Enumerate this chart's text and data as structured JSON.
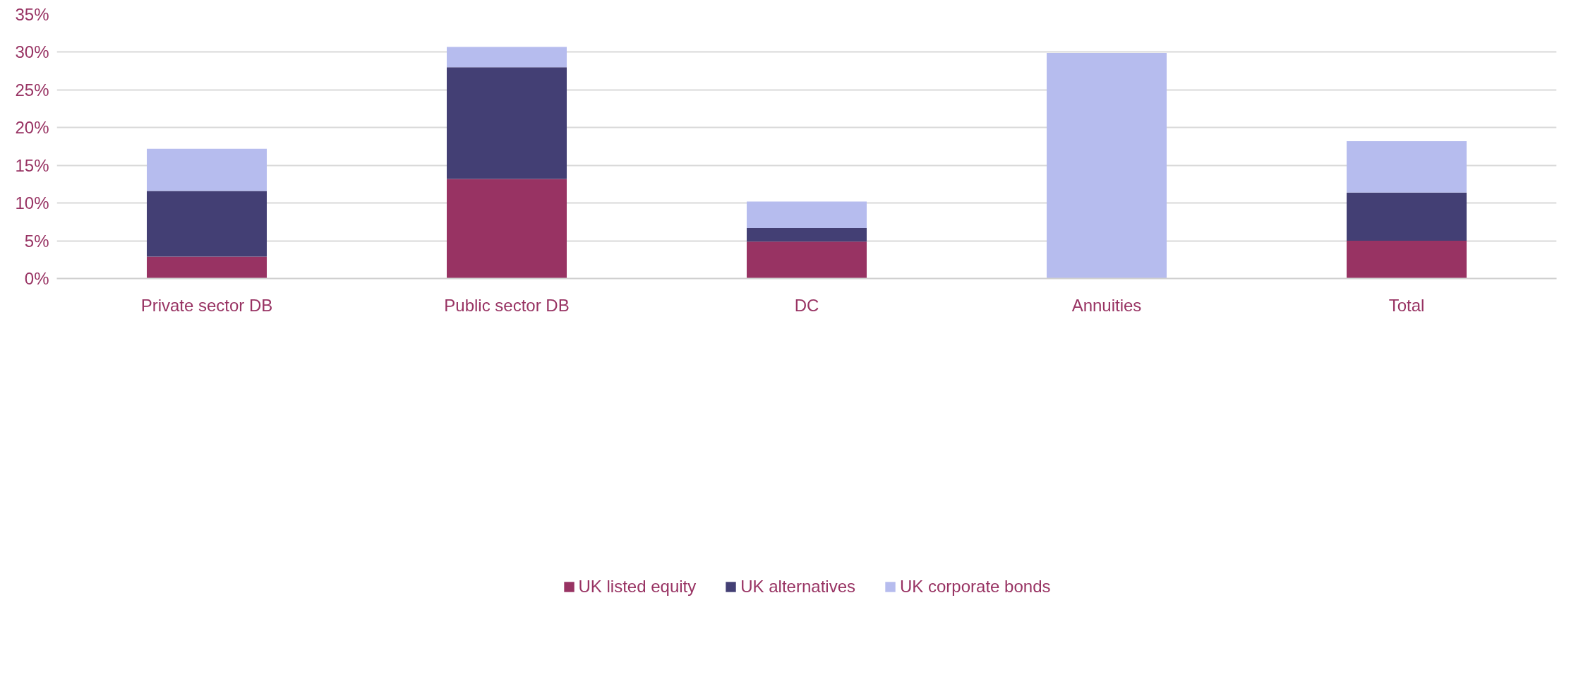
{
  "chart_data": {
    "type": "bar",
    "stacked": true,
    "categories": [
      "Private sector DB",
      "Public sector DB",
      "DC",
      "Annuities",
      "Total"
    ],
    "series": [
      {
        "name": "UK listed equity",
        "color": "#983363",
        "values": [
          2.9,
          13.2,
          4.9,
          0,
          5.0
        ]
      },
      {
        "name": "UK alternatives",
        "color": "#433f74",
        "values": [
          8.7,
          14.8,
          1.8,
          0,
          6.4
        ]
      },
      {
        "name": "UK corporate bonds",
        "color": "#b6bcee",
        "values": [
          5.6,
          2.7,
          3.5,
          29.9,
          6.8
        ]
      }
    ],
    "ylim": [
      0,
      35
    ],
    "yticks": [
      {
        "value": 0,
        "label": "0%"
      },
      {
        "value": 5,
        "label": "5%"
      },
      {
        "value": 10,
        "label": "10%"
      },
      {
        "value": 15,
        "label": "15%"
      },
      {
        "value": 20,
        "label": "20%"
      },
      {
        "value": 25,
        "label": "25%"
      },
      {
        "value": 30,
        "label": "30%"
      },
      {
        "value": 35,
        "label": "35%"
      }
    ],
    "grid": "y",
    "legend": "bottom"
  }
}
